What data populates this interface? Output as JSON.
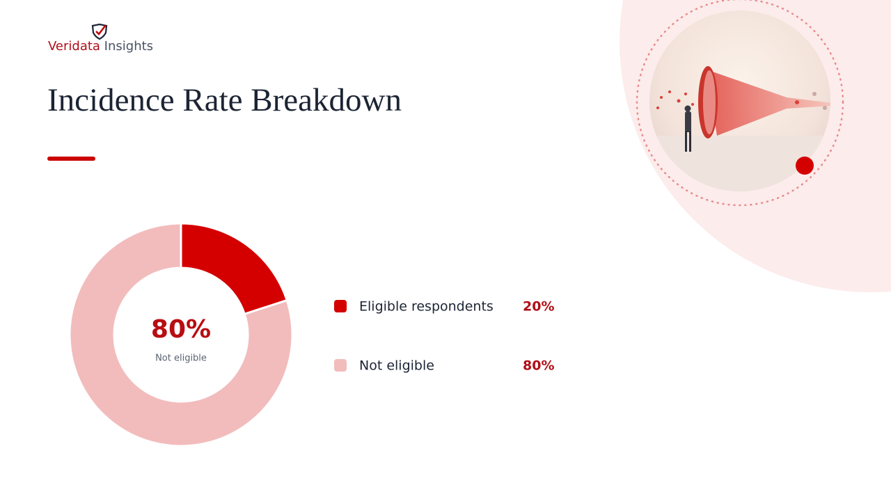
{
  "logo": {
    "brand": "Veridata",
    "suffix": "Insights"
  },
  "chart_data": {
    "type": "donut",
    "title": "Incidence Rate Breakdown",
    "categories": [
      "Eligible respondents",
      "Not eligible"
    ],
    "values": [
      20,
      80
    ],
    "value_labels": [
      "20%",
      "80%"
    ],
    "colors": [
      "#d40000",
      "#f2bcbc"
    ],
    "center_index": 1
  }
}
